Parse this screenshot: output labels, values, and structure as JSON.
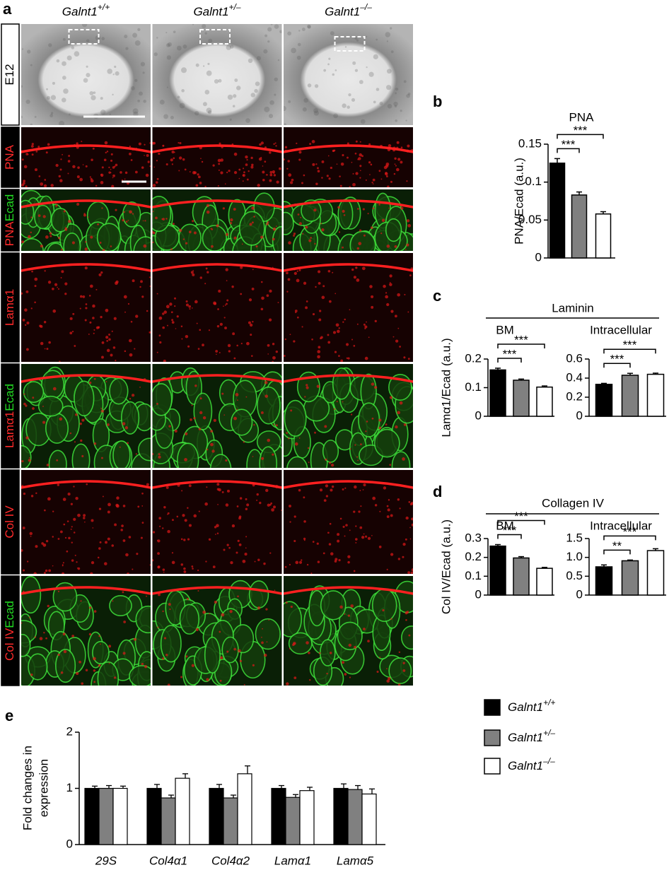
{
  "panel_a": {
    "label": "a",
    "columns": [
      {
        "gene": "Galnt1",
        "genotype": "+/+"
      },
      {
        "gene": "Galnt1",
        "genotype": "+/–"
      },
      {
        "gene": "Galnt1",
        "genotype": "–/–"
      }
    ],
    "rows": [
      [
        {
          "text": "E12",
          "color": "#000000"
        }
      ],
      [
        {
          "text": "PNA",
          "color": "#ff2a2a"
        }
      ],
      [
        {
          "text": "PNA",
          "color": "#ff2a2a"
        },
        {
          "text": "Ecad",
          "color": "#22dd22"
        }
      ],
      [
        {
          "text": "Lamα1",
          "color": "#ff2a2a"
        }
      ],
      [
        {
          "text": "Lamα1",
          "color": "#ff2a2a"
        },
        {
          "text": "Ecad",
          "color": "#22dd22"
        }
      ],
      [
        {
          "text": "Col IV",
          "color": "#ff2a2a"
        }
      ],
      [
        {
          "text": "Col IV",
          "color": "#ff2a2a"
        },
        {
          "text": "Ecad",
          "color": "#22dd22"
        }
      ]
    ]
  },
  "chart_data": [
    {
      "type": "bar",
      "panel": "b",
      "title": "PNA",
      "ylabel": "PNA/Ecad (a.u.)",
      "values": [
        0.125,
        0.083,
        0.058
      ],
      "errors": [
        0.006,
        0.004,
        0.003
      ],
      "colors": [
        "#000000",
        "#808080",
        "#ffffff"
      ],
      "ylim": [
        0,
        0.15
      ],
      "yticks": [
        0,
        0.05,
        0.1,
        0.15
      ],
      "significance": [
        "***",
        "***"
      ]
    },
    {
      "type": "bar",
      "panel": "c",
      "group_title": "Laminin",
      "title": "BM",
      "ylabel": "Lamα1/Ecad (a.u.)",
      "values": [
        0.162,
        0.126,
        0.102
      ],
      "errors": [
        0.006,
        0.004,
        0.004
      ],
      "colors": [
        "#000000",
        "#808080",
        "#ffffff"
      ],
      "ylim": [
        0,
        0.2
      ],
      "yticks": [
        0,
        0.1,
        0.2
      ],
      "significance": [
        "***",
        "***"
      ]
    },
    {
      "type": "bar",
      "title": "Intracellular",
      "values": [
        0.335,
        0.43,
        0.44
      ],
      "errors": [
        0.01,
        0.02,
        0.012
      ],
      "colors": [
        "#000000",
        "#808080",
        "#ffffff"
      ],
      "ylim": [
        0,
        0.6
      ],
      "yticks": [
        0,
        0.2,
        0.4,
        0.6
      ],
      "significance": [
        "***",
        "***"
      ]
    },
    {
      "type": "bar",
      "panel": "d",
      "group_title": "Collagen IV",
      "title": "BM",
      "ylabel": "Col IV/Ecad (a.u.)",
      "values": [
        0.26,
        0.197,
        0.142
      ],
      "errors": [
        0.008,
        0.007,
        0.005
      ],
      "colors": [
        "#000000",
        "#808080",
        "#ffffff"
      ],
      "ylim": [
        0,
        0.3
      ],
      "yticks": [
        0,
        0.1,
        0.2,
        0.3
      ],
      "significance": [
        "***",
        "***"
      ]
    },
    {
      "type": "bar",
      "title": "Intracellular",
      "values": [
        0.75,
        0.91,
        1.18
      ],
      "errors": [
        0.05,
        0.02,
        0.05
      ],
      "colors": [
        "#000000",
        "#808080",
        "#ffffff"
      ],
      "ylim": [
        0,
        1.5
      ],
      "yticks": [
        0,
        0.5,
        {
          "value": 1,
          "label": "1.0"
        },
        1.5
      ],
      "significance": [
        "**",
        "***"
      ]
    },
    {
      "type": "grouped_bar",
      "panel": "e",
      "ylabel": [
        "Fold changes in",
        "expression"
      ],
      "categories": [
        "29S",
        "Col4α1",
        "Col4α2",
        "Lamα1",
        "Lamα5"
      ],
      "series": [
        {
          "color": "#000000",
          "values": [
            1,
            1,
            1,
            1,
            1
          ],
          "errors": [
            0.04,
            0.07,
            0.07,
            0.05,
            0.08
          ]
        },
        {
          "color": "#808080",
          "values": [
            1,
            0.83,
            0.83,
            0.84,
            0.98
          ],
          "errors": [
            0.05,
            0.05,
            0.05,
            0.05,
            0.07
          ]
        },
        {
          "color": "#ffffff",
          "values": [
            1,
            1.18,
            1.26,
            0.96,
            0.9
          ],
          "errors": [
            0.04,
            0.08,
            0.14,
            0.06,
            0.09
          ]
        }
      ],
      "ylim": [
        0,
        2
      ],
      "yticks": [
        0,
        1,
        2
      ]
    }
  ],
  "legend": [
    {
      "gene": "Galnt1",
      "genotype": "+/+",
      "color": "#000000"
    },
    {
      "gene": "Galnt1",
      "genotype": "+/–",
      "color": "#808080"
    },
    {
      "gene": "Galnt1",
      "genotype": "–/–",
      "color": "#ffffff"
    }
  ]
}
